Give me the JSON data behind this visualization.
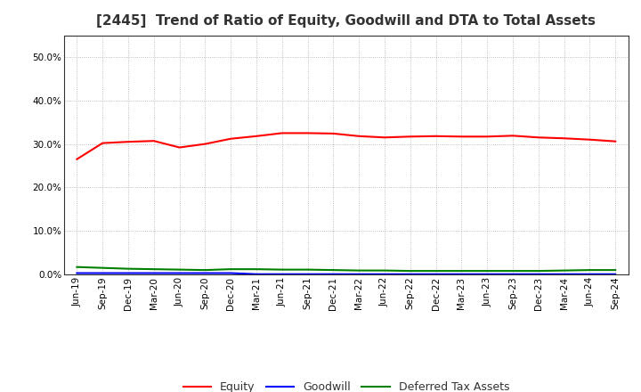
{
  "title": "[2445]  Trend of Ratio of Equity, Goodwill and DTA to Total Assets",
  "x_labels": [
    "Jun-19",
    "Sep-19",
    "Dec-19",
    "Mar-20",
    "Jun-20",
    "Sep-20",
    "Dec-20",
    "Mar-21",
    "Jun-21",
    "Sep-21",
    "Dec-21",
    "Mar-22",
    "Jun-22",
    "Sep-22",
    "Dec-22",
    "Mar-23",
    "Jun-23",
    "Sep-23",
    "Dec-23",
    "Mar-24",
    "Jun-24",
    "Sep-24"
  ],
  "equity": [
    26.5,
    30.2,
    30.5,
    30.7,
    29.2,
    30.0,
    31.2,
    31.8,
    32.5,
    32.5,
    32.4,
    31.8,
    31.5,
    31.7,
    31.8,
    31.7,
    31.7,
    31.9,
    31.5,
    31.3,
    31.0,
    30.6
  ],
  "goodwill": [
    0.3,
    0.3,
    0.3,
    0.3,
    0.3,
    0.3,
    0.3,
    0.05,
    0.05,
    0.05,
    0.05,
    0.05,
    0.05,
    0.05,
    0.05,
    0.05,
    0.05,
    0.05,
    0.05,
    0.05,
    0.05,
    0.05
  ],
  "dta": [
    1.7,
    1.5,
    1.3,
    1.2,
    1.1,
    1.0,
    1.2,
    1.2,
    1.1,
    1.1,
    1.0,
    0.9,
    0.9,
    0.8,
    0.8,
    0.8,
    0.8,
    0.8,
    0.8,
    0.9,
    1.0,
    1.0
  ],
  "equity_color": "#FF0000",
  "goodwill_color": "#0000FF",
  "dta_color": "#008000",
  "bg_color": "#FFFFFF",
  "plot_bg_color": "#FFFFFF",
  "grid_color": "#999999",
  "ylim": [
    0,
    55
  ],
  "yticks": [
    0,
    10,
    20,
    30,
    40,
    50
  ],
  "ytick_labels": [
    "0.0%",
    "10.0%",
    "20.0%",
    "30.0%",
    "40.0%",
    "50.0%"
  ],
  "legend_labels": [
    "Equity",
    "Goodwill",
    "Deferred Tax Assets"
  ],
  "title_fontsize": 11,
  "tick_fontsize": 7.5,
  "legend_fontsize": 9,
  "line_width": 1.5
}
